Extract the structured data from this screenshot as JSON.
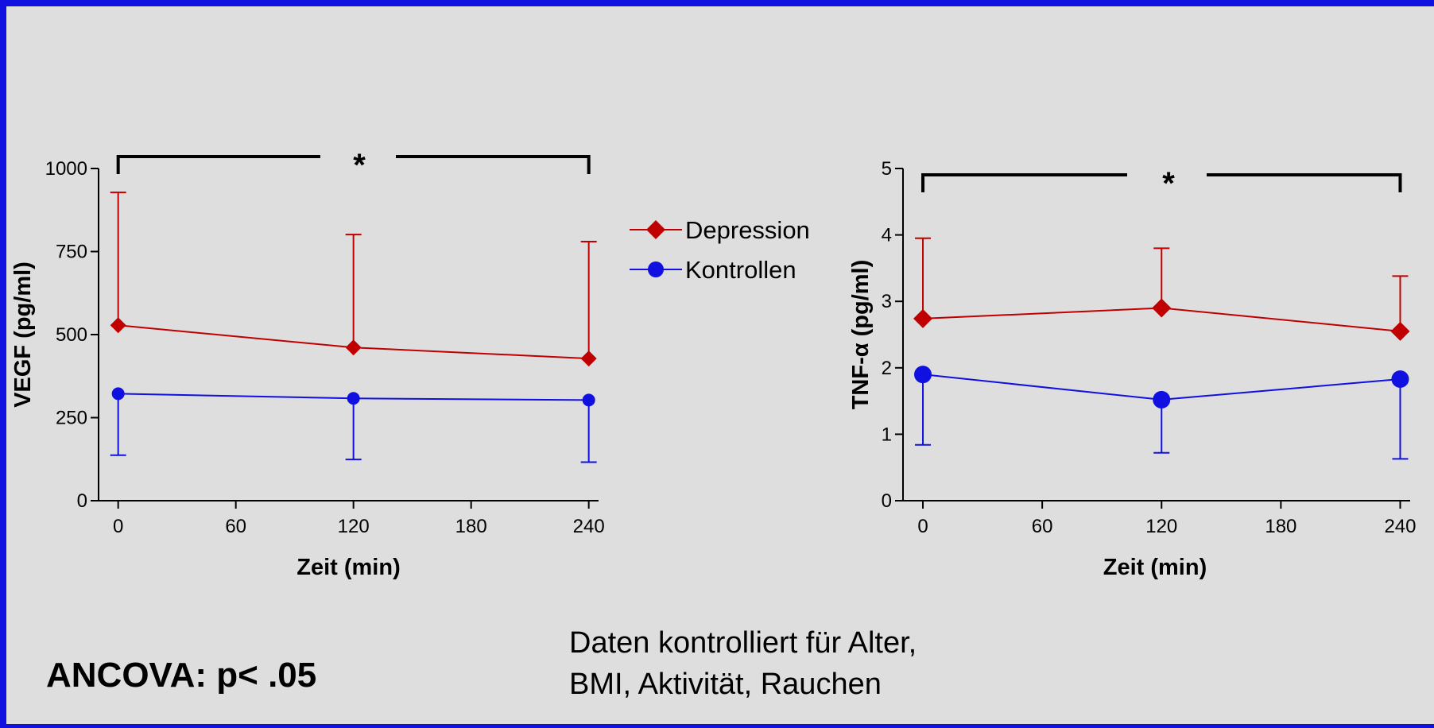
{
  "chart_data": [
    {
      "type": "line",
      "xlabel": "Zeit (min)",
      "ylabel": "VEGF (pg/ml)",
      "x": [
        0,
        120,
        240
      ],
      "xticks": [
        "0",
        "60",
        "120",
        "180",
        "240"
      ],
      "xlim": [
        -10,
        245
      ],
      "yticks": [
        "0",
        "250",
        "500",
        "750",
        "1000"
      ],
      "ylim": [
        0,
        1000
      ],
      "series": [
        {
          "name": "Depression",
          "color": "#c00000",
          "marker": "diamond",
          "values": [
            528,
            461,
            428
          ],
          "error_upper": [
            928,
            801,
            780
          ]
        },
        {
          "name": "Kontrollen",
          "color": "#1010e0",
          "marker": "circle",
          "values": [
            322,
            308,
            303
          ],
          "error_lower": [
            137,
            124,
            116
          ]
        }
      ],
      "significance": {
        "label": "*",
        "from": 0,
        "to": 240
      }
    },
    {
      "type": "line",
      "xlabel": "Zeit (min)",
      "ylabel": "TNF-α  (pg/ml)",
      "x": [
        0,
        120,
        240
      ],
      "xticks": [
        "0",
        "60",
        "120",
        "180",
        "240"
      ],
      "xlim": [
        -10,
        245
      ],
      "yticks": [
        "0",
        "1",
        "2",
        "3",
        "4",
        "5"
      ],
      "ylim": [
        0,
        5
      ],
      "series": [
        {
          "name": "Depression",
          "color": "#c00000",
          "marker": "diamond",
          "values": [
            2.74,
            2.9,
            2.55
          ],
          "error_upper": [
            3.95,
            3.8,
            3.38
          ]
        },
        {
          "name": "Kontrollen",
          "color": "#1010e0",
          "marker": "circle",
          "values": [
            1.9,
            1.52,
            1.83
          ],
          "error_lower": [
            0.84,
            0.72,
            0.63
          ]
        }
      ],
      "significance": {
        "label": "*",
        "from": 0,
        "to": 240
      }
    }
  ],
  "legend": {
    "entries": [
      {
        "label": "Depression",
        "color": "#c00000",
        "marker": "diamond"
      },
      {
        "label": "Kontrollen",
        "color": "#1010e0",
        "marker": "circle"
      }
    ]
  },
  "footer": {
    "ancova": "ANCOVA: p< .05",
    "note_line1": "Daten kontrolliert für Alter,",
    "note_line2": "BMI, Aktivität, Rauchen"
  }
}
